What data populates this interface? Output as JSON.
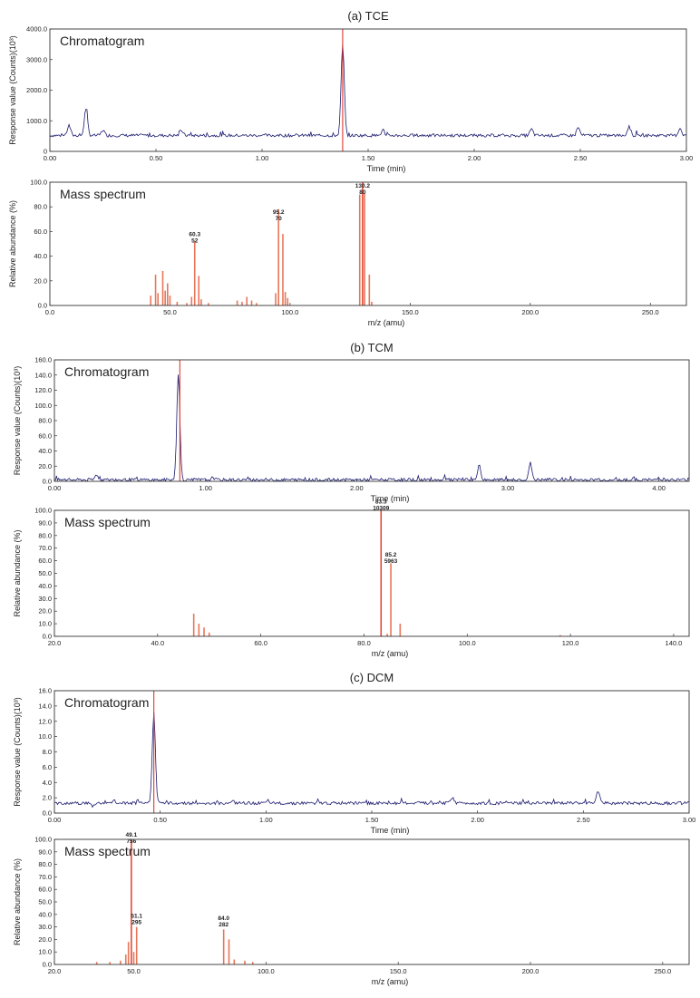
{
  "colors": {
    "trace": "#1a1a6e",
    "marker": "#e03a2f",
    "bar": "#e8765a",
    "frame": "#333333"
  },
  "chart_data": [
    {
      "type": "line",
      "panel_title": "(a) TCE",
      "title": "Chromatogram",
      "xlabel": "Time (min)",
      "ylabel": "Response value (Counts)(10³)",
      "xlim": [
        0,
        3.0
      ],
      "ylim": [
        0,
        4000
      ],
      "xticks": [
        "0.00",
        "0.50",
        "1.00",
        "1.50",
        "2.00",
        "2.50",
        "3.00"
      ],
      "yticks": [
        "0",
        "1000.0",
        "2000.0",
        "3000.0",
        "4000.0"
      ],
      "marker_x": 1.38,
      "baseline": 520,
      "peaks": [
        {
          "x": 0.09,
          "y": 850
        },
        {
          "x": 0.17,
          "y": 1400
        },
        {
          "x": 0.25,
          "y": 700
        },
        {
          "x": 0.62,
          "y": 680
        },
        {
          "x": 1.38,
          "y": 3500
        },
        {
          "x": 1.57,
          "y": 700
        },
        {
          "x": 2.27,
          "y": 720
        },
        {
          "x": 2.49,
          "y": 780
        },
        {
          "x": 2.73,
          "y": 820
        },
        {
          "x": 2.97,
          "y": 760
        }
      ]
    },
    {
      "type": "bar",
      "title": "Mass spectrum",
      "xlabel": "m/z (amu)",
      "ylabel": "Relative abundance (%)",
      "xlim": [
        0,
        265
      ],
      "ylim": [
        0,
        100
      ],
      "xticks": [
        "0.0",
        "50.0",
        "100.0",
        "150.0",
        "200.0",
        "250.0"
      ],
      "yticks": [
        "0.0",
        "20.0",
        "40.0",
        "60.0",
        "80.0",
        "100.0"
      ],
      "marker_x": 130.2,
      "bars": [
        {
          "x": 42,
          "y": 8
        },
        {
          "x": 44,
          "y": 25
        },
        {
          "x": 45,
          "y": 10
        },
        {
          "x": 47,
          "y": 28
        },
        {
          "x": 48,
          "y": 12
        },
        {
          "x": 49,
          "y": 18
        },
        {
          "x": 50,
          "y": 8
        },
        {
          "x": 53,
          "y": 3
        },
        {
          "x": 57,
          "y": 2
        },
        {
          "x": 59,
          "y": 7
        },
        {
          "x": 60.3,
          "y": 52
        },
        {
          "x": 62,
          "y": 24
        },
        {
          "x": 63,
          "y": 5
        },
        {
          "x": 66,
          "y": 2
        },
        {
          "x": 78,
          "y": 4
        },
        {
          "x": 80,
          "y": 3
        },
        {
          "x": 82,
          "y": 7
        },
        {
          "x": 84,
          "y": 4
        },
        {
          "x": 86,
          "y": 2
        },
        {
          "x": 94,
          "y": 10
        },
        {
          "x": 95.2,
          "y": 78
        },
        {
          "x": 97,
          "y": 58
        },
        {
          "x": 98,
          "y": 11
        },
        {
          "x": 99,
          "y": 6
        },
        {
          "x": 129,
          "y": 90
        },
        {
          "x": 130.2,
          "y": 100
        },
        {
          "x": 131,
          "y": 91
        },
        {
          "x": 133,
          "y": 25
        },
        {
          "x": 134,
          "y": 3
        }
      ],
      "labels": [
        {
          "x": 60.3,
          "y": 52,
          "text": [
            "60.3",
            "52"
          ]
        },
        {
          "x": 95.2,
          "y": 70,
          "text": [
            "95.2",
            "70"
          ]
        },
        {
          "x": 130.2,
          "y": 91,
          "text": [
            "130.2",
            "80"
          ]
        }
      ]
    },
    {
      "type": "line",
      "panel_title": "(b) TCM",
      "title": "Chromatogram",
      "xlabel": "Time (min)",
      "ylabel": "Response value (Counts)(10³)",
      "xlim": [
        0,
        4.2
      ],
      "ylim": [
        0,
        160
      ],
      "xticks": [
        "0.00",
        "1.00",
        "2.00",
        "3.00",
        "4.00"
      ],
      "yticks": [
        "0.0",
        "20.0",
        "40.0",
        "60.0",
        "80.0",
        "100.0",
        "120.0",
        "140.0",
        "160.0"
      ],
      "marker_x": 0.83,
      "baseline": 2,
      "peaks": [
        {
          "x": 0.28,
          "y": 9
        },
        {
          "x": 0.82,
          "y": 140
        },
        {
          "x": 1.05,
          "y": 5
        },
        {
          "x": 2.58,
          "y": 4
        },
        {
          "x": 2.81,
          "y": 21
        },
        {
          "x": 3.15,
          "y": 23
        },
        {
          "x": 3.6,
          "y": 3
        },
        {
          "x": 4.0,
          "y": 5
        }
      ]
    },
    {
      "type": "bar",
      "title": "Mass spectrum",
      "xlabel": "m/z (amu)",
      "ylabel": "Relative abundance (%)",
      "xlim": [
        20,
        143
      ],
      "ylim": [
        0,
        100
      ],
      "xticks": [
        "20.0",
        "40.0",
        "60.0",
        "80.0",
        "100.0",
        "120.0",
        "140.0"
      ],
      "yticks": [
        "0.0",
        "10.0",
        "20.0",
        "30.0",
        "40.0",
        "50.0",
        "60.0",
        "70.0",
        "80.0",
        "90.0",
        "100.0"
      ],
      "marker_x": 83.3,
      "bars": [
        {
          "x": 47,
          "y": 18
        },
        {
          "x": 48,
          "y": 10
        },
        {
          "x": 49,
          "y": 7
        },
        {
          "x": 50,
          "y": 3
        },
        {
          "x": 83.3,
          "y": 100
        },
        {
          "x": 84.5,
          "y": 2
        },
        {
          "x": 85.2,
          "y": 58
        },
        {
          "x": 87,
          "y": 10
        },
        {
          "x": 118,
          "y": 1
        }
      ],
      "labels": [
        {
          "x": 83.3,
          "y": 101,
          "text": [
            "83.3",
            "10309"
          ]
        },
        {
          "x": 85.2,
          "y": 59,
          "text": [
            "85.2",
            "5963"
          ]
        }
      ]
    },
    {
      "type": "line",
      "panel_title": "(c) DCM",
      "title": "Chromatogram",
      "xlabel": "Time (min)",
      "ylabel": "Response value (Counts)(10³)",
      "xlim": [
        0,
        3.0
      ],
      "ylim": [
        0,
        16
      ],
      "xticks": [
        "0.00",
        "0.50",
        "1.00",
        "1.50",
        "2.00",
        "2.50",
        "3.00"
      ],
      "yticks": [
        "0.0",
        "2.0",
        "4.0",
        "6.0",
        "8.0",
        "10.0",
        "12.0",
        "14.0",
        "16.0"
      ],
      "marker_x": 0.47,
      "baseline": 1.3,
      "peaks": [
        {
          "x": 0.18,
          "y": 0.9
        },
        {
          "x": 0.28,
          "y": 1.6
        },
        {
          "x": 0.47,
          "y": 13.2
        },
        {
          "x": 0.84,
          "y": 1.6
        },
        {
          "x": 1.88,
          "y": 2.1
        },
        {
          "x": 2.57,
          "y": 2.9
        }
      ]
    },
    {
      "type": "bar",
      "title": "Mass spectrum",
      "xlabel": "m/z (amu)",
      "ylabel": "Relative abundance (%)",
      "xlim": [
        20,
        260
      ],
      "ylim": [
        0,
        100
      ],
      "xticks": [
        "20.0",
        "50.0",
        "100.0",
        "150.0",
        "200.0",
        "250.0"
      ],
      "yticks": [
        "0.0",
        "10.0",
        "20.0",
        "30.0",
        "40.0",
        "50.0",
        "60.0",
        "70.0",
        "80.0",
        "90.0",
        "100.0"
      ],
      "marker_x": 49.1,
      "bars": [
        {
          "x": 36,
          "y": 2
        },
        {
          "x": 41,
          "y": 2
        },
        {
          "x": 45,
          "y": 3
        },
        {
          "x": 47,
          "y": 8
        },
        {
          "x": 48,
          "y": 18
        },
        {
          "x": 49.1,
          "y": 100
        },
        {
          "x": 50,
          "y": 10
        },
        {
          "x": 51.1,
          "y": 30
        },
        {
          "x": 84,
          "y": 28
        },
        {
          "x": 86,
          "y": 20
        },
        {
          "x": 88,
          "y": 4
        },
        {
          "x": 92,
          "y": 3
        },
        {
          "x": 95,
          "y": 2
        }
      ],
      "labels": [
        {
          "x": 49.1,
          "y": 98,
          "text": [
            "49.1",
            "756"
          ]
        },
        {
          "x": 51.1,
          "y": 33,
          "text": [
            "51.1",
            "295"
          ]
        },
        {
          "x": 84,
          "y": 31,
          "text": [
            "84.0",
            "282"
          ]
        }
      ]
    }
  ]
}
